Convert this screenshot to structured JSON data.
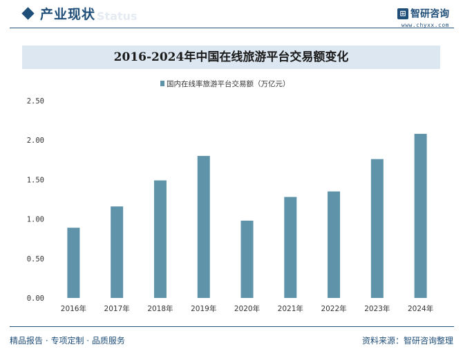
{
  "header": {
    "section_title": "产业现状",
    "watermark": "Status",
    "logo_icon": "logo-icon",
    "logo_name": "智研咨询",
    "logo_url": "www.chyxx.com"
  },
  "footer": {
    "left": "精品报告 · 专项定制 · 品质服务",
    "right": "资料来源：智研咨询整理"
  },
  "colors": {
    "primary": "#1f4e79",
    "bar": "#5f93aa",
    "title_bg": "#dce7f2"
  },
  "chart_data": {
    "type": "bar",
    "title": "2016-2024年中国在线旅游平台交易额变化",
    "xlabel": "",
    "ylabel": "",
    "legend_position": "top-center",
    "grid": false,
    "categories": [
      "2016年",
      "2017年",
      "2018年",
      "2019年",
      "2020年",
      "2021年",
      "2022年",
      "2023年",
      "2024年"
    ],
    "series": [
      {
        "name": "国内在线率旅游平台交易额（万亿元）",
        "values": [
          0.89,
          1.16,
          1.49,
          1.8,
          0.98,
          1.28,
          1.35,
          1.76,
          2.08
        ]
      }
    ],
    "ylim": [
      0,
      2.5
    ],
    "yticks": [
      "0.00",
      "0.50",
      "1.00",
      "1.50",
      "2.00",
      "2.50"
    ]
  }
}
